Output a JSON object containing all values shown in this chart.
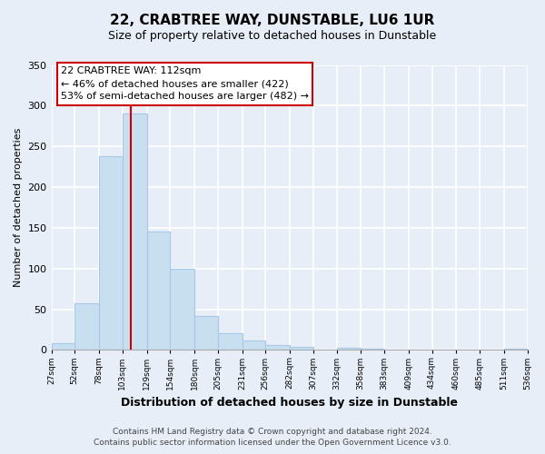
{
  "title": "22, CRABTREE WAY, DUNSTABLE, LU6 1UR",
  "subtitle": "Size of property relative to detached houses in Dunstable",
  "xlabel": "Distribution of detached houses by size in Dunstable",
  "ylabel": "Number of detached properties",
  "bar_edges": [
    27,
    52,
    78,
    103,
    129,
    154,
    180,
    205,
    231,
    256,
    282,
    307,
    332,
    358,
    383,
    409,
    434,
    460,
    485,
    511,
    536
  ],
  "bar_heights": [
    8,
    57,
    238,
    290,
    145,
    100,
    42,
    21,
    12,
    6,
    4,
    0,
    3,
    2,
    0,
    0,
    0,
    0,
    0,
    2
  ],
  "bar_color": "#c8dff0",
  "bar_edgecolor": "#a8c8e8",
  "vline_x": 112,
  "vline_color": "#cc0000",
  "ylim": [
    0,
    350
  ],
  "yticks": [
    0,
    50,
    100,
    150,
    200,
    250,
    300,
    350
  ],
  "xtick_labels": [
    "27sqm",
    "52sqm",
    "78sqm",
    "103sqm",
    "129sqm",
    "154sqm",
    "180sqm",
    "205sqm",
    "231sqm",
    "256sqm",
    "282sqm",
    "307sqm",
    "332sqm",
    "358sqm",
    "383sqm",
    "409sqm",
    "434sqm",
    "460sqm",
    "485sqm",
    "511sqm",
    "536sqm"
  ],
  "annotation_title": "22 CRABTREE WAY: 112sqm",
  "annotation_line1": "← 46% of detached houses are smaller (422)",
  "annotation_line2": "53% of semi-detached houses are larger (482) →",
  "annotation_box_facecolor": "#ffffff",
  "annotation_box_edgecolor": "#cc0000",
  "footer_line1": "Contains HM Land Registry data © Crown copyright and database right 2024.",
  "footer_line2": "Contains public sector information licensed under the Open Government Licence v3.0.",
  "background_color": "#e8eef8",
  "plot_bg_color": "#e8eef8",
  "grid_color": "#ffffff",
  "title_fontsize": 11,
  "subtitle_fontsize": 9,
  "xlabel_fontsize": 9,
  "ylabel_fontsize": 8,
  "annotation_fontsize": 8,
  "footer_fontsize": 6.5
}
